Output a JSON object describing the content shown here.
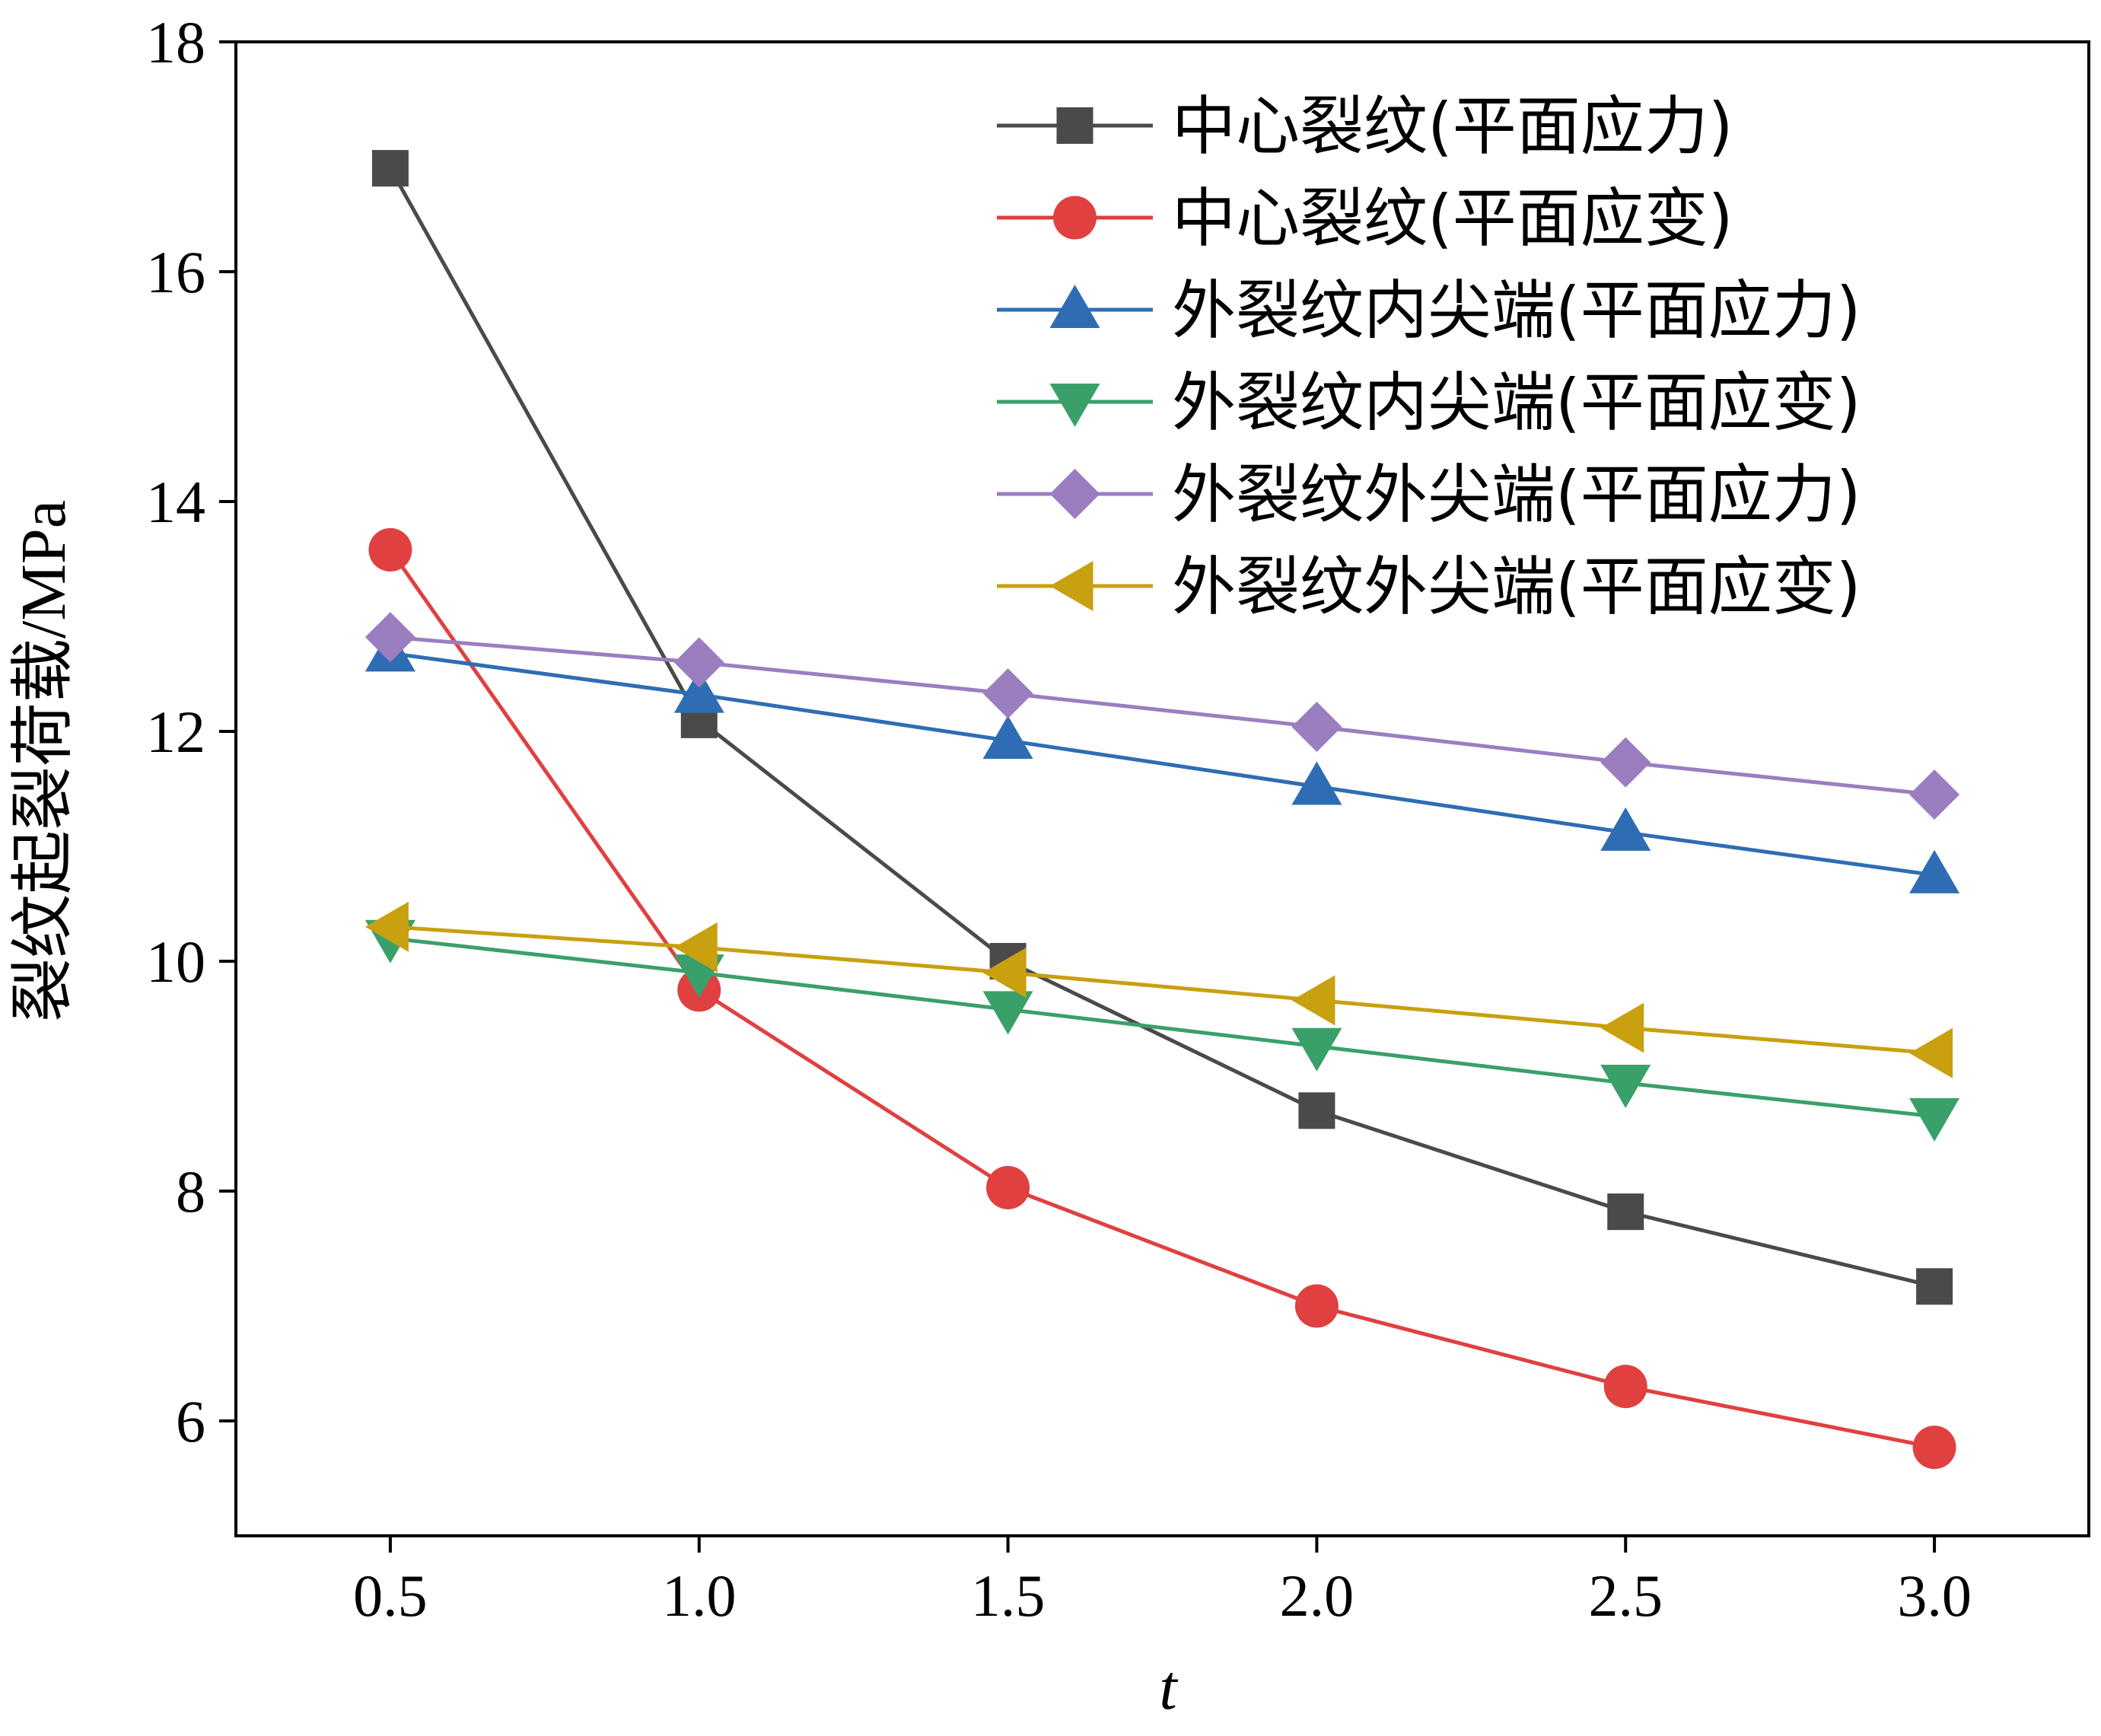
{
  "chart_data": {
    "type": "line",
    "xlabel": "t",
    "ylabel": "裂纹起裂荷载/MPa",
    "x": [
      0.5,
      1.0,
      1.5,
      2.0,
      2.5,
      3.0
    ],
    "x_tick_labels": [
      "0.5",
      "1.0",
      "1.5",
      "2.0",
      "2.5",
      "3.0"
    ],
    "xlim": [
      0.25,
      3.25
    ],
    "ylim": [
      5.0,
      18.0
    ],
    "y_ticks": [
      6,
      8,
      10,
      12,
      14,
      16,
      18
    ],
    "grid": false,
    "legend_position": "top-right",
    "series": [
      {
        "name": "中心裂纹(平面应力)",
        "marker": "square",
        "color": "#4a4a4a",
        "values": [
          16.9,
          12.1,
          10.0,
          8.7,
          7.82,
          7.17
        ]
      },
      {
        "name": "中心裂纹(平面应变)",
        "marker": "circle",
        "color": "#e04040",
        "values": [
          13.58,
          9.75,
          8.03,
          7.0,
          6.3,
          5.77
        ]
      },
      {
        "name": "外裂纹内尖端(平面应力)",
        "marker": "triangle-up",
        "color": "#2e6db4",
        "values": [
          12.68,
          12.32,
          11.92,
          11.52,
          11.12,
          10.75
        ]
      },
      {
        "name": "外裂纹内尖端(平面应变)",
        "marker": "triangle-down",
        "color": "#3aa06a",
        "values": [
          10.2,
          9.9,
          9.58,
          9.26,
          8.94,
          8.65
        ]
      },
      {
        "name": "外裂纹外尖端(平面应力)",
        "marker": "diamond",
        "color": "#9b7ec0",
        "values": [
          12.82,
          12.6,
          12.33,
          12.04,
          11.73,
          11.45
        ]
      },
      {
        "name": "外裂纹外尖端(平面应变)",
        "marker": "triangle-left",
        "color": "#c8a010",
        "values": [
          10.3,
          10.12,
          9.9,
          9.66,
          9.42,
          9.2
        ]
      }
    ]
  }
}
